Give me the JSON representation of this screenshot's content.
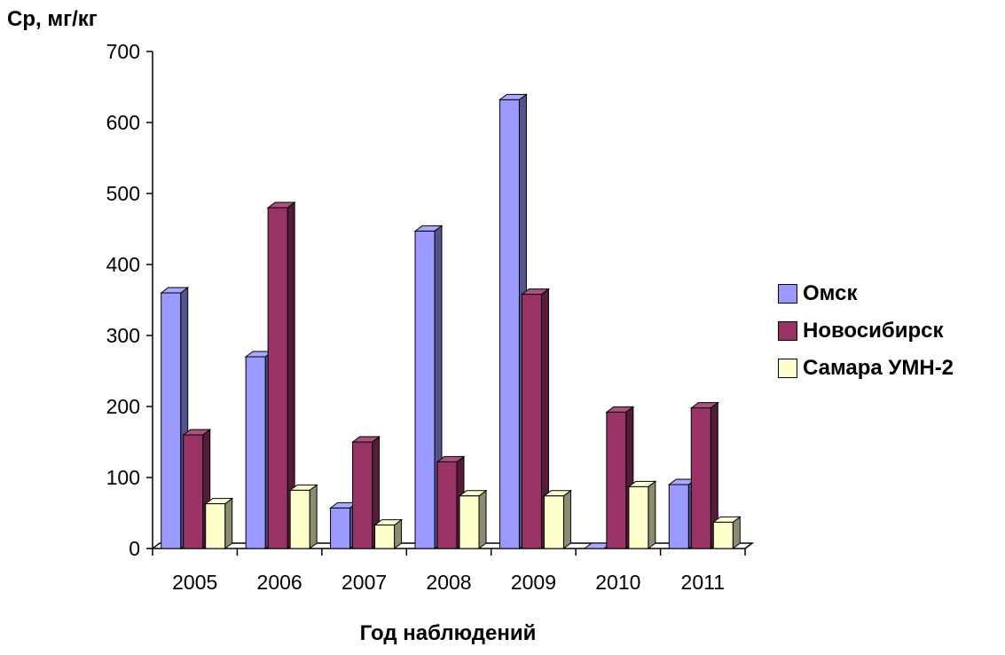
{
  "chart_data": {
    "type": "bar",
    "title": "",
    "ylabel": "Cp, мг/кг",
    "xlabel": "Год наблюдений",
    "categories": [
      "2005",
      "2006",
      "2007",
      "2008",
      "2009",
      "2010",
      "2011"
    ],
    "ylim": [
      0,
      700
    ],
    "yticks": [
      "0",
      "100",
      "200",
      "300",
      "400",
      "500",
      "600",
      "700"
    ],
    "legend_position": "right",
    "series": [
      {
        "name": "Омск",
        "color": "#9999ff",
        "values": [
          360,
          270,
          57,
          447,
          632,
          0,
          90
        ]
      },
      {
        "name": "Новосибирск",
        "color": "#993366",
        "values": [
          160,
          480,
          150,
          122,
          358,
          192,
          198
        ]
      },
      {
        "name": "Самара УМН-2",
        "color": "#ffffcc",
        "values": [
          63,
          82,
          33,
          74,
          74,
          87,
          37
        ]
      }
    ]
  }
}
